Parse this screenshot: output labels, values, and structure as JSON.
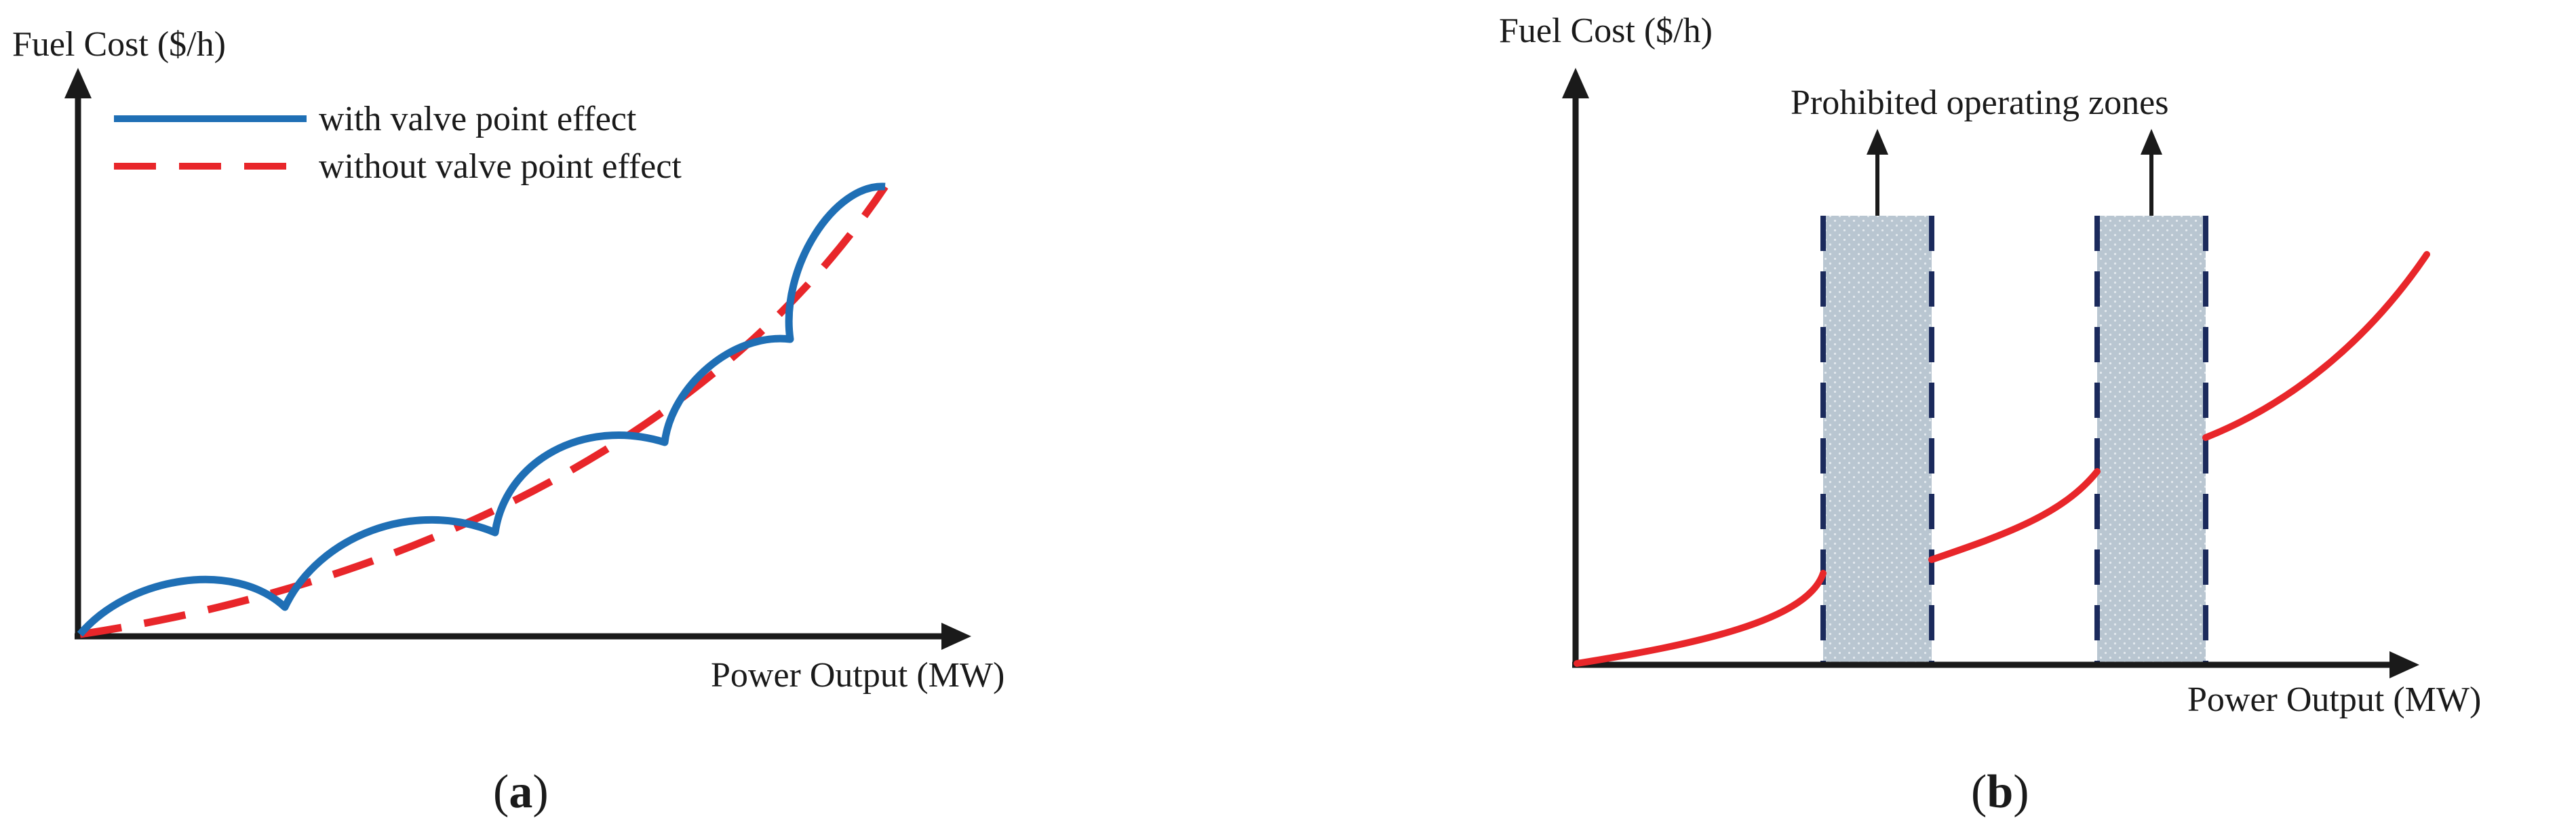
{
  "panel_a": {
    "y_axis_label": "Fuel Cost ($/h)",
    "x_axis_label": "Power Output (MW)",
    "legend": [
      {
        "label": "with valve point effect",
        "color": "#1f6fb5",
        "style": "solid"
      },
      {
        "label": "without valve point effect",
        "color": "#e8262a",
        "style": "dashed"
      }
    ],
    "label_open": "(",
    "label_letter": "a",
    "label_close": ")"
  },
  "panel_b": {
    "y_axis_label": "Fuel Cost ($/h)",
    "x_axis_label": "Power Output (MW)",
    "zones_label": "Prohibited operating zones",
    "label_open": "(",
    "label_letter": "b",
    "label_close": ")"
  },
  "colors": {
    "axis": "#1a1a1a",
    "valve_curve": "#1f6fb5",
    "smooth_curve": "#e8262a",
    "zone_fill": "#b7c4cf",
    "zone_border": "#1b2a5c"
  }
}
